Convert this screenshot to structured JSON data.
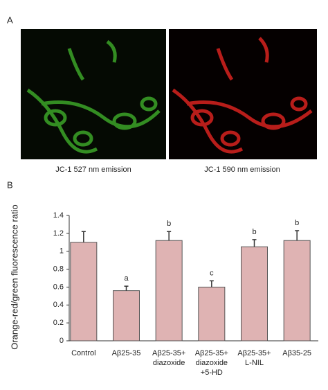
{
  "panel_a": {
    "label": "A",
    "captions": [
      "JC-1 527 nm emission",
      "JC-1 590 nm emission"
    ]
  },
  "chart_data": {
    "type": "bar",
    "panel_label": "B",
    "y_label": "Orange-red/green fluorescence ratio",
    "categories": [
      [
        "Control"
      ],
      [
        "Aβ25-35"
      ],
      [
        "Aβ25-35+",
        "diazoxide"
      ],
      [
        "Aβ25-35+",
        "diazoxide",
        "+5-HD"
      ],
      [
        "Aβ25-35+",
        "L-NIL"
      ],
      [
        "Aβ35-25"
      ]
    ],
    "values": [
      1.1,
      0.56,
      1.12,
      0.6,
      1.05,
      1.12
    ],
    "errors": [
      0.12,
      0.05,
      0.1,
      0.07,
      0.08,
      0.11
    ],
    "annotations": [
      null,
      "a",
      "b",
      "c",
      "b",
      "b"
    ],
    "color": "#dfb3b3",
    "ylim": [
      0,
      1.4
    ],
    "yticks": [
      0,
      0.2,
      0.4,
      0.6,
      0.8,
      1,
      1.2,
      1.4
    ]
  }
}
